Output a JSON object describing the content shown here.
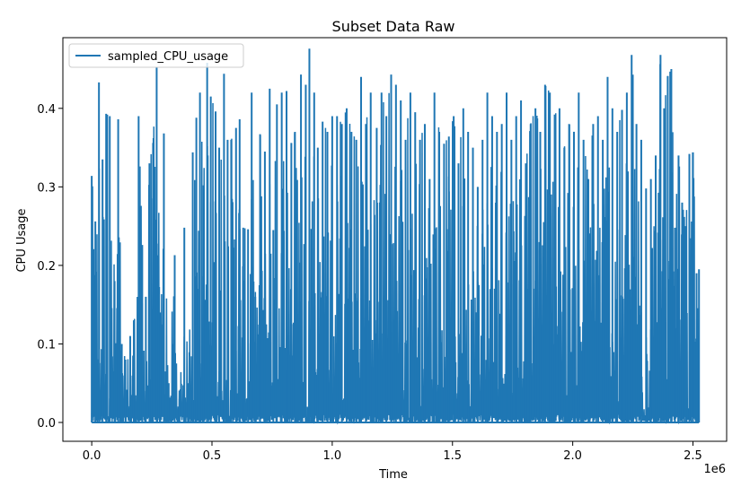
{
  "chart_data": {
    "type": "line",
    "title": "Subset Data Raw",
    "xlabel": "Time",
    "ylabel": "CPU Usage",
    "x_offset_label": "1e6",
    "xlim": [
      -120000,
      2640000
    ],
    "ylim": [
      -0.024,
      0.49
    ],
    "x_ticks": [
      0,
      500000,
      1000000,
      1500000,
      2000000,
      2500000
    ],
    "x_tick_labels": [
      "0.0",
      "0.5",
      "1.0",
      "1.5",
      "2.0",
      "2.5"
    ],
    "y_ticks": [
      0.0,
      0.1,
      0.2,
      0.3,
      0.4
    ],
    "y_tick_labels": [
      "0.0",
      "0.1",
      "0.2",
      "0.3",
      "0.4"
    ],
    "grid": false,
    "legend": "top-left",
    "series": [
      {
        "name": "sampled_CPU_usage",
        "color": "#1f77b4",
        "peaks": [
          [
            0,
            0.314
          ],
          [
            15000,
            0.256
          ],
          [
            30000,
            0.433
          ],
          [
            45000,
            0.335
          ],
          [
            60000,
            0.393
          ],
          [
            75000,
            0.39
          ],
          [
            95000,
            0.18
          ],
          [
            110000,
            0.386
          ],
          [
            125000,
            0.1
          ],
          [
            140000,
            0.08
          ],
          [
            160000,
            0.11
          ],
          [
            175000,
            0.13
          ],
          [
            195000,
            0.39
          ],
          [
            210000,
            0.226
          ],
          [
            225000,
            0.16
          ],
          [
            240000,
            0.33
          ],
          [
            255000,
            0.356
          ],
          [
            270000,
            0.452
          ],
          [
            285000,
            0.14
          ],
          [
            300000,
            0.368
          ],
          [
            320000,
            0.05
          ],
          [
            345000,
            0.213
          ],
          [
            365000,
            0.03
          ],
          [
            385000,
            0.248
          ],
          [
            400000,
            0.05
          ],
          [
            420000,
            0.344
          ],
          [
            435000,
            0.388
          ],
          [
            450000,
            0.42
          ],
          [
            465000,
            0.302
          ],
          [
            480000,
            0.458
          ],
          [
            495000,
            0.415
          ],
          [
            515000,
            0.396
          ],
          [
            530000,
            0.35
          ],
          [
            550000,
            0.444
          ],
          [
            565000,
            0.36
          ],
          [
            580000,
            0.36
          ],
          [
            600000,
            0.375
          ],
          [
            615000,
            0.386
          ],
          [
            630000,
            0.248
          ],
          [
            650000,
            0.246
          ],
          [
            665000,
            0.42
          ],
          [
            680000,
            0.16
          ],
          [
            700000,
            0.367
          ],
          [
            720000,
            0.345
          ],
          [
            740000,
            0.425
          ],
          [
            755000,
            0.245
          ],
          [
            770000,
            0.405
          ],
          [
            790000,
            0.42
          ],
          [
            810000,
            0.422
          ],
          [
            830000,
            0.356
          ],
          [
            845000,
            0.37
          ],
          [
            870000,
            0.443
          ],
          [
            890000,
            0.43
          ],
          [
            905000,
            0.476
          ],
          [
            925000,
            0.42
          ],
          [
            940000,
            0.35
          ],
          [
            960000,
            0.383
          ],
          [
            980000,
            0.37
          ],
          [
            1000000,
            0.39
          ],
          [
            1020000,
            0.39
          ],
          [
            1040000,
            0.38
          ],
          [
            1060000,
            0.4
          ],
          [
            1080000,
            0.37
          ],
          [
            1100000,
            0.36
          ],
          [
            1120000,
            0.44
          ],
          [
            1140000,
            0.38
          ],
          [
            1160000,
            0.42
          ],
          [
            1185000,
            0.375
          ],
          [
            1205000,
            0.42
          ],
          [
            1225000,
            0.39
          ],
          [
            1245000,
            0.443
          ],
          [
            1265000,
            0.43
          ],
          [
            1285000,
            0.41
          ],
          [
            1305000,
            0.36
          ],
          [
            1325000,
            0.42
          ],
          [
            1345000,
            0.395
          ],
          [
            1365000,
            0.36
          ],
          [
            1385000,
            0.38
          ],
          [
            1405000,
            0.31
          ],
          [
            1425000,
            0.42
          ],
          [
            1445000,
            0.37
          ],
          [
            1465000,
            0.355
          ],
          [
            1485000,
            0.364
          ],
          [
            1505000,
            0.39
          ],
          [
            1525000,
            0.33
          ],
          [
            1545000,
            0.4
          ],
          [
            1565000,
            0.37
          ],
          [
            1585000,
            0.35
          ],
          [
            1605000,
            0.3
          ],
          [
            1625000,
            0.36
          ],
          [
            1645000,
            0.42
          ],
          [
            1665000,
            0.39
          ],
          [
            1685000,
            0.37
          ],
          [
            1705000,
            0.38
          ],
          [
            1725000,
            0.42
          ],
          [
            1745000,
            0.36
          ],
          [
            1765000,
            0.39
          ],
          [
            1785000,
            0.41
          ],
          [
            1805000,
            0.33
          ],
          [
            1825000,
            0.38
          ],
          [
            1845000,
            0.4
          ],
          [
            1865000,
            0.37
          ],
          [
            1885000,
            0.43
          ],
          [
            1905000,
            0.42
          ],
          [
            1925000,
            0.392
          ],
          [
            1945000,
            0.4
          ],
          [
            1965000,
            0.35
          ],
          [
            1985000,
            0.38
          ],
          [
            2005000,
            0.37
          ],
          [
            2025000,
            0.42
          ],
          [
            2045000,
            0.36
          ],
          [
            2065000,
            0.31
          ],
          [
            2085000,
            0.38
          ],
          [
            2105000,
            0.39
          ],
          [
            2125000,
            0.36
          ],
          [
            2145000,
            0.44
          ],
          [
            2165000,
            0.4
          ],
          [
            2185000,
            0.37
          ],
          [
            2205000,
            0.398
          ],
          [
            2225000,
            0.42
          ],
          [
            2245000,
            0.468
          ],
          [
            2265000,
            0.38
          ],
          [
            2285000,
            0.36
          ],
          [
            2305000,
            0.298
          ],
          [
            2325000,
            0.31
          ],
          [
            2345000,
            0.34
          ],
          [
            2365000,
            0.468
          ],
          [
            2380000,
            0.4
          ],
          [
            2395000,
            0.441
          ],
          [
            2410000,
            0.45
          ],
          [
            2425000,
            0.248
          ],
          [
            2440000,
            0.34
          ],
          [
            2455000,
            0.28
          ],
          [
            2470000,
            0.25
          ],
          [
            2485000,
            0.342
          ],
          [
            2500000,
            0.344
          ],
          [
            2515000,
            0.19
          ],
          [
            2525000,
            0.195
          ]
        ]
      }
    ]
  }
}
